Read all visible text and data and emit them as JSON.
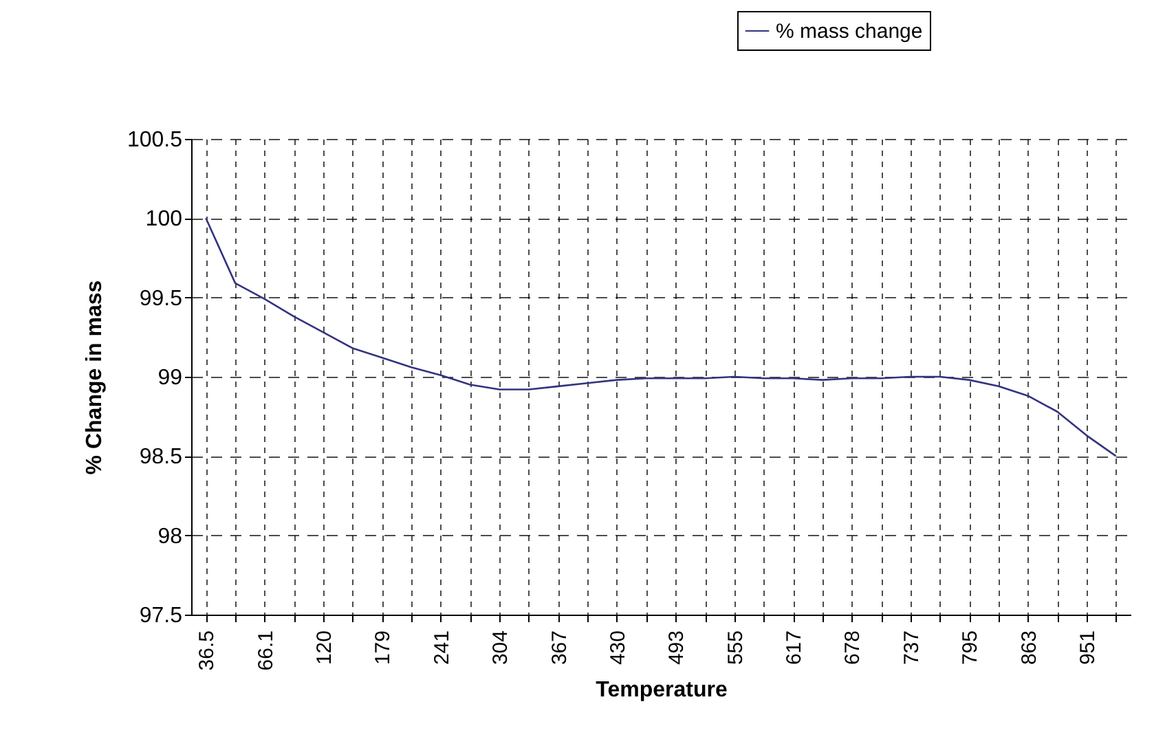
{
  "chart_data": {
    "type": "line",
    "xlabel": "Temperature",
    "ylabel": "% Change in mass",
    "categories": [
      "36.5",
      null,
      "66.1",
      null,
      "120",
      null,
      "179",
      null,
      "241",
      null,
      "304",
      null,
      "367",
      null,
      "430",
      null,
      "493",
      null,
      "555",
      null,
      "617",
      null,
      "678",
      null,
      "737",
      null,
      "795",
      null,
      "863",
      null,
      "951",
      null
    ],
    "series": [
      {
        "name": "% mass change",
        "color": "#333380",
        "values": [
          100.0,
          99.59,
          99.49,
          99.38,
          99.28,
          99.18,
          99.12,
          99.06,
          99.01,
          98.95,
          98.92,
          98.92,
          98.94,
          98.96,
          98.98,
          98.99,
          98.99,
          98.99,
          99.0,
          98.99,
          98.99,
          98.98,
          98.99,
          98.99,
          99.0,
          99.0,
          98.98,
          98.94,
          98.88,
          98.78,
          98.63,
          98.5
        ]
      }
    ],
    "ylim": [
      97.5,
      100.5
    ],
    "yticks": [
      97.5,
      98,
      98.5,
      99,
      99.5,
      100,
      100.5
    ],
    "grid": true,
    "legend": "top right",
    "line_style": "solid"
  }
}
